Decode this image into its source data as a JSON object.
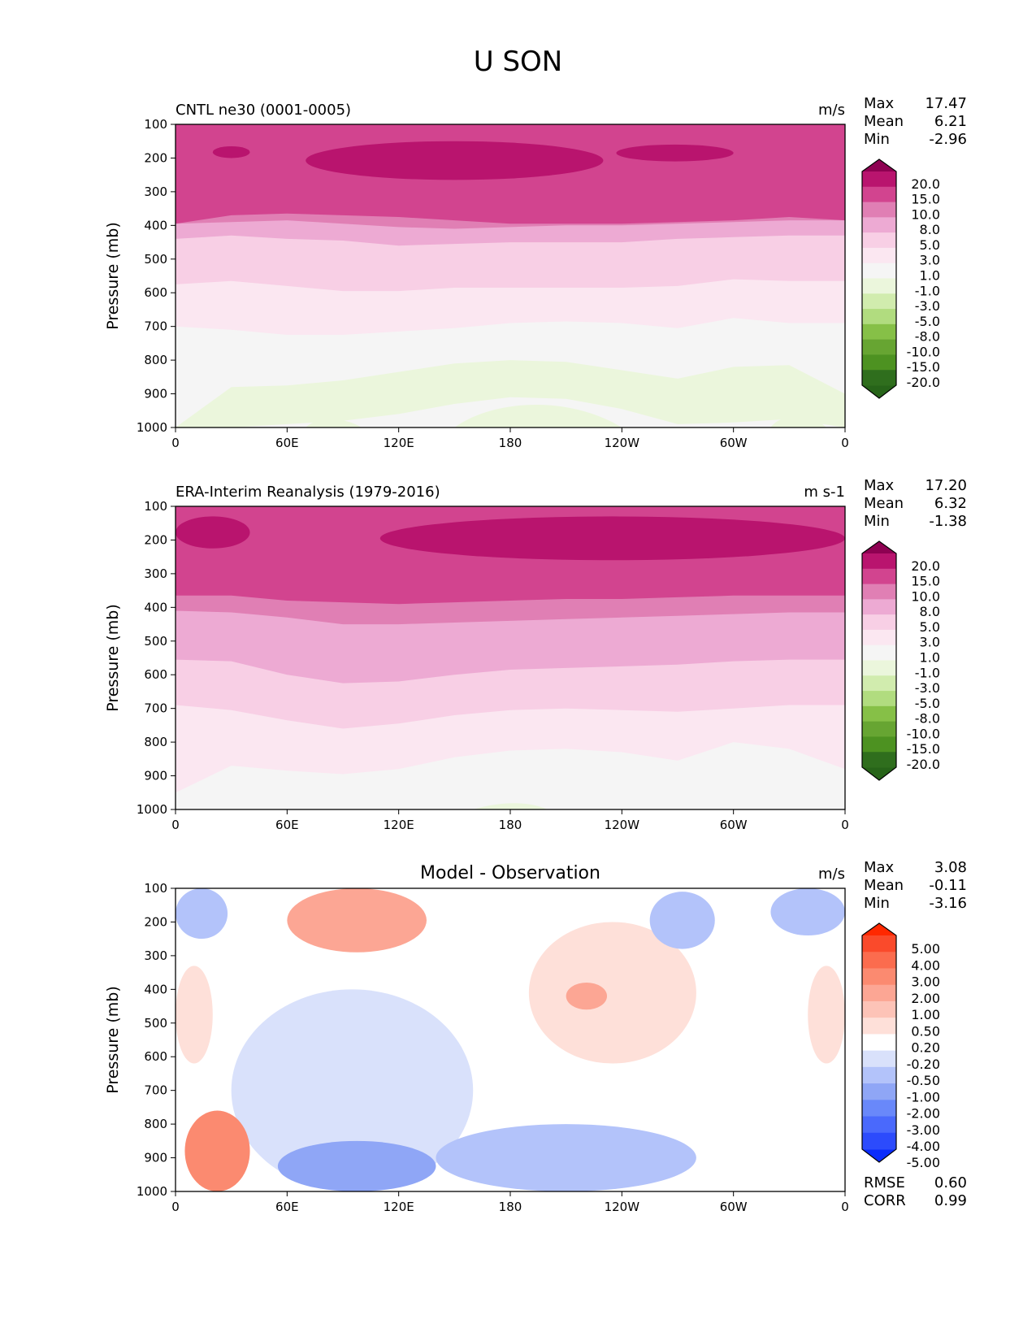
{
  "figure": {
    "title": "U SON",
    "colors": {
      "seq_levels": [
        "-20.0",
        "-15.0",
        "-10.0",
        "-8.0",
        "-5.0",
        "-3.0",
        "-1.0",
        "1.0",
        "3.0",
        "5.0",
        "8.0",
        "10.0",
        "15.0",
        "20.0"
      ],
      "seq_colors": [
        "#276419",
        "#2f6e1d",
        "#4d9221",
        "#67a532",
        "#86c047",
        "#b1dc7f",
        "#d1ecae",
        "#ebf6dc",
        "#f5f5f5",
        "#fbe7f1",
        "#f8cfe5",
        "#edaad3",
        "#e07fb4",
        "#d2448f",
        "#b9146e",
        "#8e0152"
      ],
      "diff_levels": [
        "-5.00",
        "-4.00",
        "-3.00",
        "-2.00",
        "-1.00",
        "-0.50",
        "-0.20",
        "0.20",
        "0.50",
        "1.00",
        "2.00",
        "3.00",
        "4.00",
        "5.00"
      ],
      "diff_colors": [
        "#0a2cfc",
        "#2c4bfc",
        "#4a69fc",
        "#6988fa",
        "#8fa6f6",
        "#b3c3fa",
        "#d9e1fb",
        "#ffffff",
        "#fee0d9",
        "#fdc3b7",
        "#fca694",
        "#fb8a70",
        "#fb6c4e",
        "#fa4a2b",
        "#ff2800"
      ]
    }
  },
  "chart_data": [
    {
      "type": "heatmap",
      "panel": "test",
      "title": "CNTL ne30 (0001-0005)",
      "units": "m/s",
      "ylabel": "Pressure (mb)",
      "xlabel": "",
      "x_ticks": [
        "0",
        "60E",
        "120E",
        "180",
        "120W",
        "60W",
        "0"
      ],
      "x_range": [
        0,
        360
      ],
      "y_ticks": [
        "100",
        "200",
        "300",
        "400",
        "500",
        "600",
        "700",
        "800",
        "900",
        "1000"
      ],
      "y_range": [
        100,
        1000
      ],
      "colormap": "seq",
      "stats": [
        {
          "label": "Max",
          "value": "17.47"
        },
        {
          "label": "Mean",
          "value": "6.21"
        },
        {
          "label": "Min",
          "value": "-2.96"
        }
      ],
      "contour_levels": [
        "20.0",
        "15.0",
        "10.0",
        "8.0",
        "5.0",
        "3.0",
        "1.0",
        "-1.0",
        "-3.0",
        "-5.0",
        "-8.0",
        "-10.0",
        "-15.0",
        "-20.0"
      ],
      "bands": [
        {
          "level": 15,
          "boundary_top": [
            320,
            320,
            320,
            320,
            320,
            320,
            320,
            320,
            320,
            320,
            320,
            320,
            320
          ],
          "boundary_bottom": [
            395,
            370,
            365,
            370,
            375,
            385,
            395,
            395,
            395,
            390,
            385,
            375,
            385
          ]
        },
        {
          "level": 10,
          "boundary_bottom": [
            395,
            390,
            385,
            395,
            405,
            410,
            405,
            400,
            400,
            395,
            390,
            385,
            385
          ]
        },
        {
          "level": 8,
          "boundary_bottom": [
            440,
            430,
            440,
            445,
            460,
            455,
            450,
            450,
            450,
            440,
            435,
            430,
            430
          ]
        },
        {
          "level": 5,
          "boundary_bottom": [
            575,
            565,
            580,
            595,
            595,
            585,
            585,
            585,
            585,
            580,
            560,
            565,
            565
          ]
        },
        {
          "level": 3,
          "boundary_bottom": [
            700,
            710,
            725,
            725,
            715,
            705,
            690,
            685,
            690,
            705,
            675,
            690,
            690
          ]
        },
        {
          "level": 1,
          "boundary_bottom": [
            1000,
            880,
            875,
            860,
            835,
            810,
            800,
            805,
            830,
            855,
            820,
            815,
            900
          ]
        },
        {
          "level": -1,
          "boundary_bottom": [
            1000,
            1000,
            990,
            980,
            960,
            930,
            910,
            915,
            945,
            990,
            985,
            975,
            1000
          ]
        }
      ],
      "jet_cores_gt15": [
        {
          "lon": [
            20,
            40
          ],
          "p": [
            165,
            200
          ]
        },
        {
          "lon": [
            70,
            230
          ],
          "p": [
            150,
            265
          ]
        },
        {
          "lon": [
            237,
            300
          ],
          "p": [
            160,
            210
          ]
        }
      ]
    },
    {
      "type": "heatmap",
      "panel": "reference",
      "title": "ERA-Interim Reanalysis (1979-2016)",
      "units": "m s-1",
      "ylabel": "Pressure (mb)",
      "xlabel": "",
      "x_ticks": [
        "0",
        "60E",
        "120E",
        "180",
        "120W",
        "60W",
        "0"
      ],
      "x_range": [
        0,
        360
      ],
      "y_ticks": [
        "100",
        "200",
        "300",
        "400",
        "500",
        "600",
        "700",
        "800",
        "900",
        "1000"
      ],
      "y_range": [
        100,
        1000
      ],
      "colormap": "seq",
      "stats": [
        {
          "label": "Max",
          "value": "17.20"
        },
        {
          "label": "Mean",
          "value": "6.32"
        },
        {
          "label": "Min",
          "value": "-1.38"
        }
      ],
      "contour_levels": [
        "20.0",
        "15.0",
        "10.0",
        "8.0",
        "5.0",
        "3.0",
        "1.0",
        "-1.0",
        "-3.0",
        "-5.0",
        "-8.0",
        "-10.0",
        "-15.0",
        "-20.0"
      ],
      "bands": [
        {
          "level": 15,
          "boundary_bottom": [
            365,
            365,
            380,
            385,
            390,
            385,
            380,
            375,
            375,
            370,
            365,
            365,
            365
          ]
        },
        {
          "level": 10,
          "boundary_bottom": [
            410,
            415,
            430,
            450,
            450,
            445,
            440,
            435,
            430,
            425,
            420,
            415,
            415
          ]
        },
        {
          "level": 8,
          "boundary_bottom": [
            555,
            560,
            600,
            625,
            620,
            600,
            585,
            580,
            575,
            570,
            560,
            555,
            555
          ]
        },
        {
          "level": 5,
          "boundary_bottom": [
            690,
            705,
            735,
            760,
            745,
            720,
            705,
            700,
            705,
            710,
            700,
            690,
            690
          ]
        },
        {
          "level": 3,
          "boundary_bottom": [
            950,
            870,
            885,
            895,
            880,
            845,
            825,
            820,
            830,
            855,
            800,
            820,
            880
          ]
        },
        {
          "level": 1,
          "boundary_bottom": [
            1000,
            1000,
            1000,
            1000,
            1000,
            1000,
            985,
            980,
            1000,
            1000,
            1000,
            1000,
            1000
          ]
        }
      ],
      "jet_cores_gt15": [
        {
          "lon": [
            0,
            40
          ],
          "p": [
            130,
            225
          ]
        },
        {
          "lon": [
            110,
            360
          ],
          "p": [
            130,
            260
          ]
        }
      ]
    },
    {
      "type": "heatmap",
      "panel": "difference",
      "title": "Model - Observation",
      "units": "m/s",
      "ylabel": "Pressure (mb)",
      "xlabel": "",
      "x_ticks": [
        "0",
        "60E",
        "120E",
        "180",
        "120W",
        "60W",
        "0"
      ],
      "x_range": [
        0,
        360
      ],
      "y_ticks": [
        "100",
        "200",
        "300",
        "400",
        "500",
        "600",
        "700",
        "800",
        "900",
        "1000"
      ],
      "y_range": [
        100,
        1000
      ],
      "colormap": "diff",
      "stats": [
        {
          "label": "Max",
          "value": "3.08"
        },
        {
          "label": "Mean",
          "value": "-0.11"
        },
        {
          "label": "Min",
          "value": "-3.16"
        }
      ],
      "metrics": [
        {
          "label": "RMSE",
          "value": "0.60"
        },
        {
          "label": "CORR",
          "value": "0.99"
        }
      ],
      "contour_levels": [
        "5.00",
        "4.00",
        "3.00",
        "2.00",
        "1.00",
        "0.50",
        "0.20",
        "-0.20",
        "-0.50",
        "-1.00",
        "-2.00",
        "-3.00",
        "-4.00",
        "-5.00"
      ],
      "features": [
        {
          "sign": "neg",
          "value": -1.0,
          "lon": [
            0,
            28
          ],
          "p": [
            100,
            250
          ],
          "desc": "upper-level negative, western edge"
        },
        {
          "sign": "pos",
          "value": 1.5,
          "lon": [
            60,
            135
          ],
          "p": [
            100,
            290
          ],
          "desc": "upper-level positive over Indian Ocean/Asia"
        },
        {
          "sign": "pos",
          "value": 0.4,
          "lon": [
            190,
            280
          ],
          "p": [
            200,
            620
          ],
          "desc": "mid-level positive central Pacific"
        },
        {
          "sign": "pos",
          "value": 1.0,
          "lon": [
            210,
            232
          ],
          "p": [
            380,
            460
          ]
        },
        {
          "sign": "neg",
          "value": -1.0,
          "lon": [
            255,
            290
          ],
          "p": [
            110,
            280
          ]
        },
        {
          "sign": "neg",
          "value": -1.0,
          "lon": [
            320,
            360
          ],
          "p": [
            100,
            240
          ]
        },
        {
          "sign": "neg",
          "value": -0.5,
          "lon": [
            30,
            160
          ],
          "p": [
            400,
            1000
          ],
          "desc": "lower troposphere negative Indian Ocean/W Pacific"
        },
        {
          "sign": "neg",
          "value": -1.5,
          "lon": [
            55,
            140
          ],
          "p": [
            850,
            1000
          ]
        },
        {
          "sign": "neg",
          "value": -1.0,
          "lon": [
            140,
            280
          ],
          "p": [
            800,
            1000
          ]
        },
        {
          "sign": "pos",
          "value": 2.0,
          "lon": [
            5,
            40
          ],
          "p": [
            760,
            1000
          ],
          "desc": "near-surface positive, 0-40E"
        },
        {
          "sign": "pos",
          "value": 0.4,
          "lon": [
            0,
            20
          ],
          "p": [
            330,
            620
          ]
        },
        {
          "sign": "pos",
          "value": 0.4,
          "lon": [
            340,
            360
          ],
          "p": [
            330,
            620
          ]
        }
      ]
    }
  ]
}
